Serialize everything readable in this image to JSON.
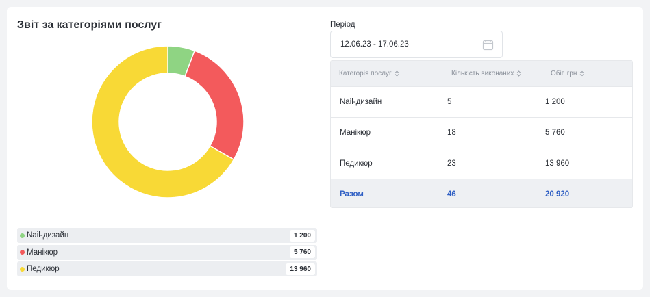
{
  "report": {
    "title": "Звіт за категоріями послуг"
  },
  "period": {
    "label": "Період",
    "value": "12.06.23 - 17.06.23",
    "icon": "calendar-icon"
  },
  "colors": {
    "green": "#8fd483",
    "red": "#f35a5c",
    "yellow": "#f8d936"
  },
  "legend": [
    {
      "label": "Nail-дизайн",
      "value": "1 200",
      "color": "#8fd483"
    },
    {
      "label": "Манікюр",
      "value": "5 760",
      "color": "#f35a5c"
    },
    {
      "label": "Педикюр",
      "value": "13 960",
      "color": "#f8d936"
    }
  ],
  "table": {
    "headers": [
      "Категорія послуг",
      "Кількість виконаних",
      "Обіг, грн"
    ],
    "rows": [
      [
        "Nail-дизайн",
        "5",
        "1 200"
      ],
      [
        "Манікюр",
        "18",
        "5 760"
      ],
      [
        "Педикюр",
        "23",
        "13 960"
      ]
    ],
    "total": [
      "Разом",
      "46",
      "20 920"
    ]
  },
  "chart_data": {
    "type": "pie",
    "categories": [
      "Nail-дизайн",
      "Манікюр",
      "Педикюр"
    ],
    "values": [
      1200,
      5760,
      13960
    ],
    "colors": [
      "#8fd483",
      "#f35a5c",
      "#f8d936"
    ]
  }
}
